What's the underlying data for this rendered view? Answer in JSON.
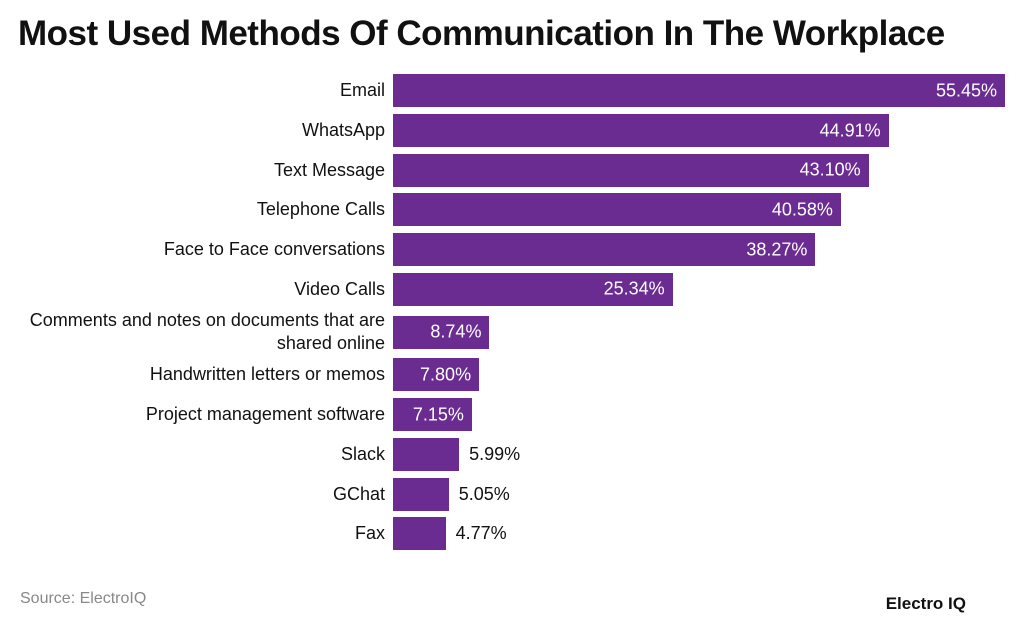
{
  "chart_data": {
    "type": "bar",
    "orientation": "horizontal",
    "title": "Most Used Methods Of Communication In The Workplace",
    "categories": [
      "Email",
      "WhatsApp",
      "Text Message",
      "Telephone Calls",
      "Face to Face conversations",
      "Video Calls",
      "Comments and notes on documents that are shared online",
      "Handwritten letters or memos",
      "Project management software",
      "Slack",
      "GChat",
      "Fax"
    ],
    "values": [
      55.45,
      44.91,
      43.1,
      40.58,
      38.27,
      25.34,
      8.74,
      7.8,
      7.15,
      5.99,
      5.05,
      4.77
    ],
    "value_labels": [
      "55.45%",
      "44.91%",
      "43.10%",
      "40.58%",
      "38.27%",
      "25.34%",
      "8.74%",
      "7.80%",
      "7.15%",
      "5.99%",
      "5.05%",
      "4.77%"
    ],
    "color": "#6a2c91",
    "source": "Source: ElectroIQ",
    "brand": "Electro IQ"
  }
}
